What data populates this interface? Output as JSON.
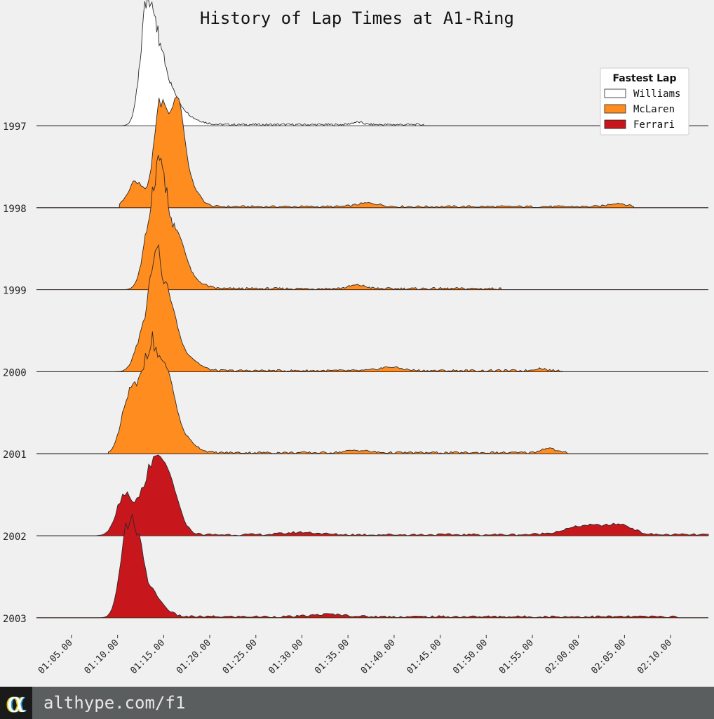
{
  "chart_data": {
    "type": "area",
    "subtype": "ridgeline",
    "title": "History of Lap Times at A1-Ring",
    "xlabel": "",
    "ylabel": "",
    "x_unit": "lap time (minutes)",
    "xlim": [
      1.02,
      2.235
    ],
    "x_ticks": [
      1.0833,
      1.1667,
      1.25,
      1.3333,
      1.4167,
      1.5,
      1.5833,
      1.6667,
      1.75,
      1.8333,
      1.9167,
      2.0,
      2.0833,
      2.1667
    ],
    "x_tick_labels": [
      "01:05.00",
      "01:10.00",
      "01:15.00",
      "01:20.00",
      "01:25.00",
      "01:30.00",
      "01:35.00",
      "01:40.00",
      "01:45.00",
      "01:50.00",
      "01:55.00",
      "02:00.00",
      "02:05.00",
      "02:10.00"
    ],
    "legend": {
      "title": "Fastest Lap",
      "placement": "top-right",
      "entries": [
        {
          "name": "Williams",
          "color": "#ffffff"
        },
        {
          "name": "McLaren",
          "color": "#ff8c1f"
        },
        {
          "name": "Ferrari",
          "color": "#c8161d"
        }
      ]
    },
    "series": [
      {
        "name": "1997",
        "team": "Williams",
        "color": "#ffffff",
        "peaks": [
          [
            1.22,
            0.95,
            0.012
          ],
          [
            1.245,
            0.55,
            0.015
          ],
          [
            1.275,
            0.12,
            0.015
          ],
          [
            1.3,
            0.04,
            0.02
          ],
          [
            1.6,
            0.02,
            0.01
          ]
        ],
        "x_range": [
          1.16,
          1.72
        ]
      },
      {
        "name": "1998",
        "team": "McLaren",
        "color": "#ff8c1f",
        "peaks": [
          [
            1.2,
            0.22,
            0.015
          ],
          [
            1.245,
            0.85,
            0.012
          ],
          [
            1.275,
            0.85,
            0.012
          ],
          [
            1.3,
            0.15,
            0.015
          ],
          [
            1.62,
            0.03,
            0.02
          ],
          [
            2.07,
            0.03,
            0.015
          ]
        ],
        "x_range": [
          1.17,
          2.1
        ]
      },
      {
        "name": "1999",
        "team": "McLaren",
        "color": "#ff8c1f",
        "peaks": [
          [
            1.225,
            0.45,
            0.013
          ],
          [
            1.245,
            0.9,
            0.012
          ],
          [
            1.275,
            0.4,
            0.014
          ],
          [
            1.3,
            0.07,
            0.02
          ],
          [
            1.6,
            0.03,
            0.015
          ]
        ],
        "x_range": [
          1.18,
          1.86
        ]
      },
      {
        "name": "2000",
        "team": "McLaren",
        "color": "#ff8c1f",
        "peaks": [
          [
            1.21,
            0.25,
            0.013
          ],
          [
            1.235,
            0.85,
            0.012
          ],
          [
            1.26,
            0.5,
            0.014
          ],
          [
            1.29,
            0.12,
            0.02
          ],
          [
            1.66,
            0.03,
            0.02
          ],
          [
            1.93,
            0.02,
            0.01
          ]
        ],
        "x_range": [
          1.16,
          1.97
        ]
      },
      {
        "name": "2001",
        "team": "McLaren",
        "color": "#ff8c1f",
        "peaks": [
          [
            1.19,
            0.5,
            0.015
          ],
          [
            1.225,
            0.82,
            0.014
          ],
          [
            1.255,
            0.6,
            0.015
          ],
          [
            1.285,
            0.12,
            0.02
          ],
          [
            1.6,
            0.02,
            0.02
          ],
          [
            1.945,
            0.04,
            0.012
          ]
        ],
        "x_range": [
          1.15,
          1.98
        ]
      },
      {
        "name": "2002",
        "team": "Ferrari",
        "color": "#c8161d",
        "peaks": [
          [
            1.18,
            0.35,
            0.015
          ],
          [
            1.23,
            0.6,
            0.018
          ],
          [
            1.26,
            0.35,
            0.015
          ],
          [
            1.28,
            0.06,
            0.015
          ],
          [
            1.5,
            0.02,
            0.03
          ],
          [
            2.02,
            0.08,
            0.04
          ],
          [
            2.08,
            0.06,
            0.02
          ]
        ],
        "x_range": [
          1.12,
          2.235
        ]
      },
      {
        "name": "2003",
        "team": "Ferrari",
        "color": "#c8161d",
        "peaks": [
          [
            1.18,
            0.55,
            0.012
          ],
          [
            1.2,
            0.6,
            0.012
          ],
          [
            1.225,
            0.2,
            0.015
          ],
          [
            1.25,
            0.05,
            0.015
          ],
          [
            1.55,
            0.02,
            0.03
          ]
        ],
        "x_range": [
          1.12,
          2.18
        ]
      }
    ]
  },
  "footer": {
    "logo_glyph": "α",
    "url": "althype.com/f1"
  }
}
